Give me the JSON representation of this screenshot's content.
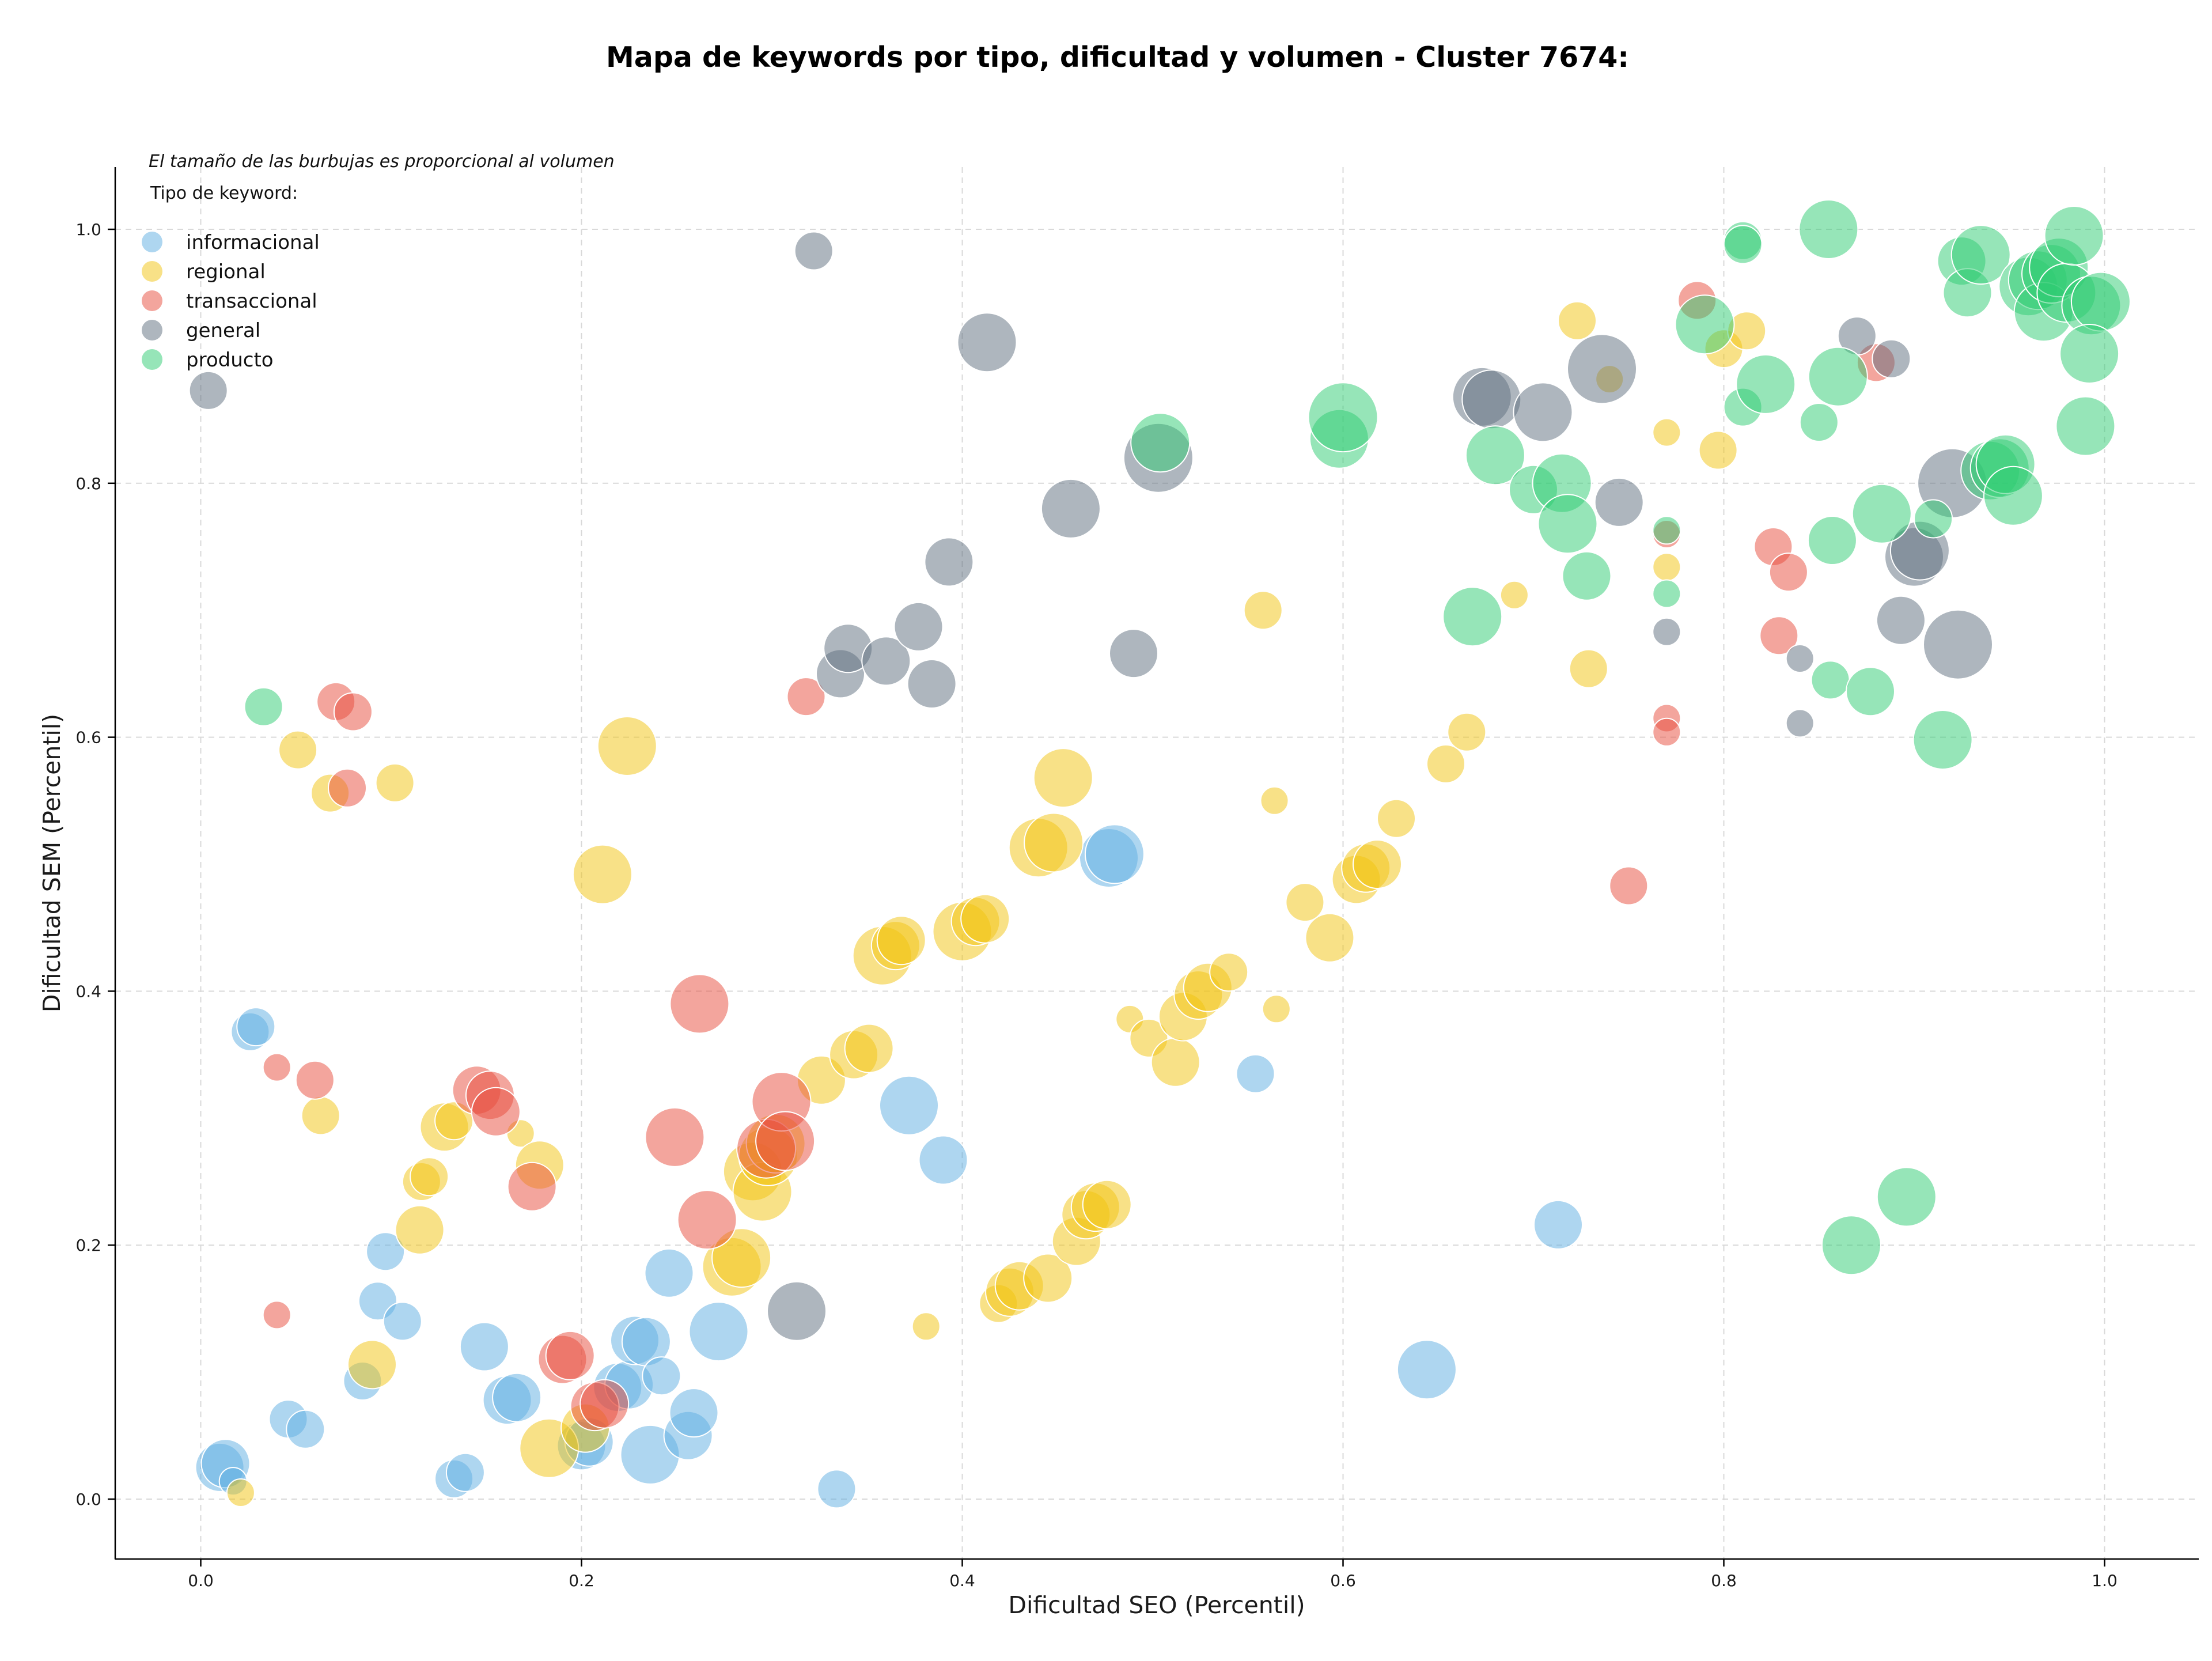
{
  "chart_data": {
    "type": "scatter",
    "title": "Mapa de keywords por tipo, dificultad y volumen - Cluster 7674:",
    "xlabel": "Dificultad SEO (Percentil)",
    "ylabel": "Dificultad SEM (Percentil)",
    "xlim": [
      -0.045,
      1.05
    ],
    "ylim": [
      -0.045,
      1.05
    ],
    "xticks": [
      "0.0",
      "0.2",
      "0.4",
      "0.6",
      "0.8",
      "1.0"
    ],
    "yticks": [
      "0.0",
      "0.2",
      "0.4",
      "0.6",
      "0.8",
      "1.0"
    ],
    "grid": true,
    "note": "El tamaño de las burbujas es proporcional al volumen",
    "legend": {
      "title": "Tipo de keyword:",
      "placement": "top-left"
    },
    "series": [
      {
        "name": "informacional",
        "color": "#5DADE2",
        "points": [
          [
            0.01,
            0.025,
            3
          ],
          [
            0.013,
            0.028,
            3
          ],
          [
            0.017,
            0.014,
            1
          ],
          [
            0.026,
            0.368,
            2
          ],
          [
            0.029,
            0.372,
            2
          ],
          [
            0.046,
            0.063,
            2
          ],
          [
            0.055,
            0.055,
            2
          ],
          [
            0.085,
            0.093,
            2
          ],
          [
            0.097,
            0.195,
            2
          ],
          [
            0.093,
            0.156,
            2
          ],
          [
            0.106,
            0.14,
            2
          ],
          [
            0.133,
            0.016,
            2
          ],
          [
            0.139,
            0.021,
            2
          ],
          [
            0.149,
            0.12,
            3
          ],
          [
            0.161,
            0.078,
            3
          ],
          [
            0.166,
            0.08,
            3
          ],
          [
            0.2,
            0.042,
            3
          ],
          [
            0.204,
            0.045,
            3
          ],
          [
            0.219,
            0.088,
            3
          ],
          [
            0.225,
            0.09,
            3
          ],
          [
            0.228,
            0.125,
            3
          ],
          [
            0.234,
            0.124,
            3
          ],
          [
            0.236,
            0.035,
            4
          ],
          [
            0.242,
            0.097,
            2
          ],
          [
            0.246,
            0.178,
            3
          ],
          [
            0.256,
            0.05,
            3
          ],
          [
            0.259,
            0.068,
            3
          ],
          [
            0.272,
            0.132,
            4
          ],
          [
            0.334,
            0.008,
            2
          ],
          [
            0.372,
            0.31,
            4
          ],
          [
            0.39,
            0.267,
            3
          ],
          [
            0.477,
            0.505,
            4
          ],
          [
            0.48,
            0.508,
            4
          ],
          [
            0.554,
            0.335,
            2
          ],
          [
            0.644,
            0.102,
            4
          ],
          [
            0.713,
            0.216,
            3
          ]
        ]
      },
      {
        "name": "regional",
        "color": "#F1C40F",
        "points": [
          [
            0.021,
            0.005,
            1
          ],
          [
            0.051,
            0.59,
            2
          ],
          [
            0.063,
            0.302,
            2
          ],
          [
            0.068,
            0.556,
            2
          ],
          [
            0.102,
            0.564,
            2
          ],
          [
            0.09,
            0.106,
            3
          ],
          [
            0.115,
            0.212,
            3
          ],
          [
            0.116,
            0.25,
            2
          ],
          [
            0.12,
            0.254,
            2
          ],
          [
            0.128,
            0.293,
            3
          ],
          [
            0.133,
            0.298,
            2
          ],
          [
            0.168,
            0.288,
            1
          ],
          [
            0.178,
            0.263,
            3
          ],
          [
            0.183,
            0.04,
            4
          ],
          [
            0.202,
            0.056,
            3
          ],
          [
            0.211,
            0.492,
            4
          ],
          [
            0.224,
            0.593,
            4
          ],
          [
            0.279,
            0.183,
            4
          ],
          [
            0.284,
            0.19,
            4
          ],
          [
            0.29,
            0.258,
            4
          ],
          [
            0.295,
            0.242,
            4
          ],
          [
            0.298,
            0.27,
            4
          ],
          [
            0.302,
            0.28,
            4
          ],
          [
            0.326,
            0.33,
            3
          ],
          [
            0.343,
            0.35,
            3
          ],
          [
            0.351,
            0.355,
            3
          ],
          [
            0.358,
            0.428,
            4
          ],
          [
            0.365,
            0.436,
            3
          ],
          [
            0.368,
            0.44,
            3
          ],
          [
            0.381,
            0.136,
            1
          ],
          [
            0.4,
            0.447,
            4
          ],
          [
            0.407,
            0.455,
            3
          ],
          [
            0.412,
            0.457,
            3
          ],
          [
            0.419,
            0.154,
            2
          ],
          [
            0.425,
            0.163,
            3
          ],
          [
            0.43,
            0.168,
            3
          ],
          [
            0.44,
            0.513,
            4
          ],
          [
            0.445,
            0.174,
            3
          ],
          [
            0.448,
            0.517,
            4
          ],
          [
            0.453,
            0.568,
            4
          ],
          [
            0.46,
            0.203,
            3
          ],
          [
            0.465,
            0.224,
            3
          ],
          [
            0.47,
            0.23,
            3
          ],
          [
            0.476,
            0.232,
            3
          ],
          [
            0.488,
            0.378,
            1
          ],
          [
            0.498,
            0.363,
            2
          ],
          [
            0.512,
            0.344,
            3
          ],
          [
            0.516,
            0.38,
            3
          ],
          [
            0.524,
            0.397,
            3
          ],
          [
            0.529,
            0.403,
            3
          ],
          [
            0.54,
            0.415,
            2
          ],
          [
            0.558,
            0.7,
            2
          ],
          [
            0.564,
            0.55,
            1
          ],
          [
            0.565,
            0.386,
            1
          ],
          [
            0.58,
            0.47,
            2
          ],
          [
            0.593,
            0.442,
            3
          ],
          [
            0.607,
            0.488,
            3
          ],
          [
            0.612,
            0.497,
            3
          ],
          [
            0.618,
            0.5,
            3
          ],
          [
            0.628,
            0.536,
            2
          ],
          [
            0.654,
            0.579,
            2
          ],
          [
            0.665,
            0.604,
            2
          ],
          [
            0.69,
            0.712,
            1
          ],
          [
            0.723,
            0.928,
            2
          ],
          [
            0.729,
            0.654,
            2
          ],
          [
            0.74,
            0.882,
            1
          ],
          [
            0.77,
            0.84,
            1
          ],
          [
            0.77,
            0.734,
            1
          ],
          [
            0.797,
            0.826,
            2
          ],
          [
            0.8,
            0.906,
            2
          ],
          [
            0.812,
            0.92,
            2
          ]
        ]
      },
      {
        "name": "transaccional",
        "color": "#E74C3C",
        "points": [
          [
            0.04,
            0.145,
            1
          ],
          [
            0.04,
            0.34,
            1
          ],
          [
            0.06,
            0.33,
            2
          ],
          [
            0.071,
            0.628,
            2
          ],
          [
            0.077,
            0.56,
            2
          ],
          [
            0.08,
            0.62,
            2
          ],
          [
            0.145,
            0.322,
            3
          ],
          [
            0.152,
            0.318,
            3
          ],
          [
            0.155,
            0.305,
            3
          ],
          [
            0.174,
            0.246,
            3
          ],
          [
            0.19,
            0.11,
            3
          ],
          [
            0.194,
            0.113,
            3
          ],
          [
            0.207,
            0.073,
            3
          ],
          [
            0.212,
            0.075,
            3
          ],
          [
            0.249,
            0.285,
            4
          ],
          [
            0.262,
            0.39,
            4
          ],
          [
            0.266,
            0.22,
            4
          ],
          [
            0.297,
            0.276,
            4
          ],
          [
            0.305,
            0.313,
            4
          ],
          [
            0.307,
            0.282,
            4
          ],
          [
            0.318,
            0.632,
            2
          ],
          [
            0.75,
            0.483,
            2
          ],
          [
            0.77,
            0.76,
            1
          ],
          [
            0.77,
            0.615,
            1
          ],
          [
            0.77,
            0.604,
            1
          ],
          [
            0.786,
            0.944,
            2
          ],
          [
            0.826,
            0.75,
            2
          ],
          [
            0.829,
            0.68,
            2
          ],
          [
            0.834,
            0.73,
            2
          ],
          [
            0.88,
            0.895,
            2
          ]
        ]
      },
      {
        "name": "general",
        "color": "#5D6D7E",
        "points": [
          [
            0.004,
            0.873,
            2
          ],
          [
            0.322,
            0.983,
            2
          ],
          [
            0.413,
            0.911,
            4
          ],
          [
            0.336,
            0.65,
            3
          ],
          [
            0.34,
            0.67,
            3
          ],
          [
            0.36,
            0.66,
            3
          ],
          [
            0.377,
            0.687,
            3
          ],
          [
            0.384,
            0.642,
            3
          ],
          [
            0.393,
            0.738,
            3
          ],
          [
            0.313,
            0.148,
            4
          ],
          [
            0.457,
            0.78,
            4
          ],
          [
            0.49,
            0.666,
            3
          ],
          [
            0.503,
            0.82,
            5
          ],
          [
            0.673,
            0.868,
            4
          ],
          [
            0.678,
            0.866,
            4
          ],
          [
            0.705,
            0.856,
            4
          ],
          [
            0.736,
            0.89,
            5
          ],
          [
            0.745,
            0.785,
            3
          ],
          [
            0.77,
            0.683,
            1
          ],
          [
            0.84,
            0.662,
            1
          ],
          [
            0.84,
            0.611,
            1
          ],
          [
            0.87,
            0.916,
            2
          ],
          [
            0.888,
            0.898,
            2
          ],
          [
            0.893,
            0.692,
            3
          ],
          [
            0.9,
            0.742,
            4
          ],
          [
            0.903,
            0.747,
            4
          ],
          [
            0.92,
            0.8,
            5
          ],
          [
            0.923,
            0.673,
            5
          ]
        ]
      },
      {
        "name": "producto",
        "color": "#2ECC71",
        "points": [
          [
            0.033,
            0.624,
            2
          ],
          [
            0.504,
            0.832,
            4
          ],
          [
            0.598,
            0.835,
            4
          ],
          [
            0.6,
            0.852,
            5
          ],
          [
            0.668,
            0.695,
            4
          ],
          [
            0.68,
            0.822,
            4
          ],
          [
            0.7,
            0.795,
            3
          ],
          [
            0.715,
            0.8,
            4
          ],
          [
            0.718,
            0.768,
            4
          ],
          [
            0.728,
            0.727,
            3
          ],
          [
            0.77,
            0.763,
            1
          ],
          [
            0.77,
            0.713,
            1
          ],
          [
            0.79,
            0.925,
            4
          ],
          [
            0.81,
            0.991,
            2
          ],
          [
            0.81,
            0.988,
            2
          ],
          [
            0.81,
            0.86,
            2
          ],
          [
            0.822,
            0.878,
            4
          ],
          [
            0.85,
            0.848,
            2
          ],
          [
            0.855,
            1.0,
            4
          ],
          [
            0.857,
            0.755,
            3
          ],
          [
            0.86,
            0.884,
            4
          ],
          [
            0.856,
            0.645,
            2
          ],
          [
            0.867,
            0.2,
            4
          ],
          [
            0.877,
            0.636,
            3
          ],
          [
            0.883,
            0.776,
            4
          ],
          [
            0.896,
            0.238,
            4
          ],
          [
            0.91,
            0.772,
            2
          ],
          [
            0.915,
            0.598,
            4
          ],
          [
            0.925,
            0.975,
            3
          ],
          [
            0.928,
            0.95,
            3
          ],
          [
            0.935,
            0.98,
            4
          ],
          [
            0.94,
            0.81,
            4
          ],
          [
            0.945,
            0.812,
            4
          ],
          [
            0.948,
            0.815,
            4
          ],
          [
            0.952,
            0.79,
            4
          ],
          [
            0.96,
            0.955,
            4
          ],
          [
            0.965,
            0.96,
            4
          ],
          [
            0.968,
            0.935,
            4
          ],
          [
            0.972,
            0.965,
            4
          ],
          [
            0.976,
            0.97,
            4
          ],
          [
            0.98,
            0.95,
            4
          ],
          [
            0.984,
            0.995,
            4
          ],
          [
            0.99,
            0.845,
            4
          ],
          [
            0.993,
            0.94,
            4
          ],
          [
            0.998,
            0.943,
            4
          ],
          [
            0.992,
            0.902,
            4
          ]
        ]
      }
    ]
  }
}
